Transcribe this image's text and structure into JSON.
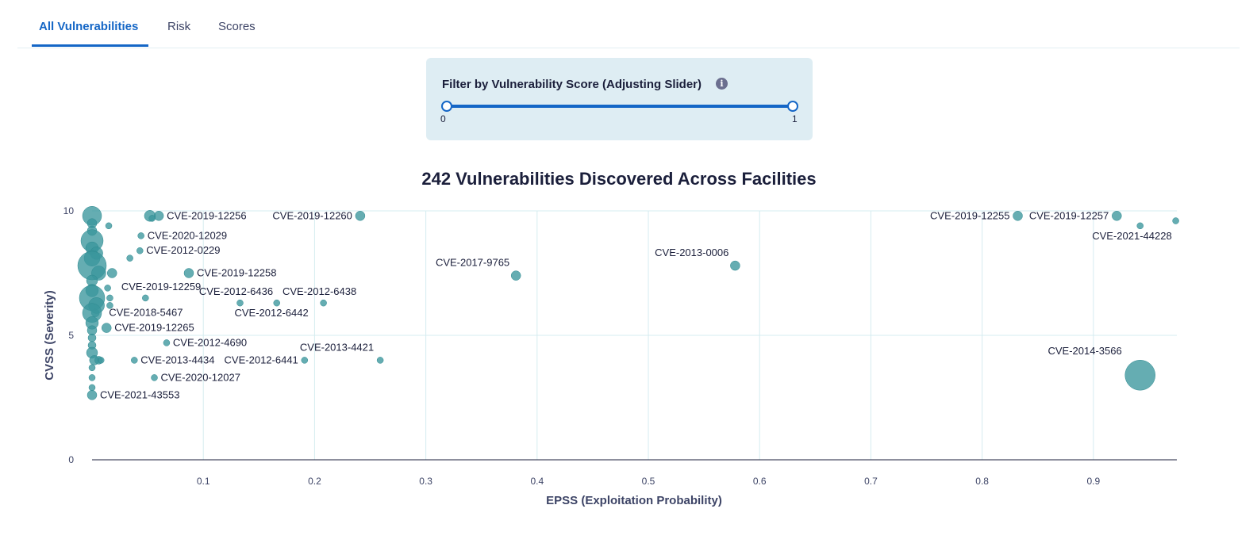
{
  "tabs": [
    {
      "label": "All Vulnerabilities",
      "active": true
    },
    {
      "label": "Risk",
      "active": false
    },
    {
      "label": "Scores",
      "active": false
    }
  ],
  "filter": {
    "title": "Filter by Vulnerability Score (Adjusting Slider)",
    "min_label": "0",
    "max_label": "1",
    "range": [
      0,
      1
    ],
    "accent_color": "#1466c6",
    "panel_color": "#deedf3"
  },
  "chart_data": {
    "type": "scatter",
    "title": "242 Vulnerabilities Discovered Across Facilities",
    "xlabel": "EPSS (Exploitation Probability)",
    "ylabel": "CVSS (Severity)",
    "xlim": [
      0,
      0.975
    ],
    "ylim": [
      0,
      10
    ],
    "xticks": [
      "0.1",
      "0.2",
      "0.3",
      "0.4",
      "0.5",
      "0.6",
      "0.7",
      "0.8",
      "0.9"
    ],
    "yticks": [
      "0",
      "5",
      "10"
    ],
    "grid": true,
    "marker_color": "#3a969c",
    "points": [
      {
        "label": "CVE-2019-12256",
        "x": 0.06,
        "y": 9.8,
        "size": 6
      },
      {
        "label": "CVE-2019-12260",
        "x": 0.241,
        "y": 9.8,
        "size": 6
      },
      {
        "label": "CVE-2019-12255",
        "x": 0.832,
        "y": 9.8,
        "size": 6
      },
      {
        "label": "CVE-2019-12257",
        "x": 0.921,
        "y": 9.8,
        "size": 6
      },
      {
        "label": "CVE-2021-44228",
        "x": 0.942,
        "y": 9.4,
        "size": 4
      },
      {
        "label": "CVE-2020-12029",
        "x": 0.044,
        "y": 9.0,
        "size": 4
      },
      {
        "label": "CVE-2012-0229",
        "x": 0.043,
        "y": 8.4,
        "size": 4
      },
      {
        "label": "CVE-2013-0006",
        "x": 0.578,
        "y": 7.8,
        "size": 6
      },
      {
        "label": "CVE-2019-12258",
        "x": 0.087,
        "y": 7.5,
        "size": 6
      },
      {
        "label": "CVE-2017-9765",
        "x": 0.381,
        "y": 7.4,
        "size": 6
      },
      {
        "label": "CVE-2019-12259",
        "x": 0.048,
        "y": 6.5,
        "size": 4
      },
      {
        "label": "CVE-2012-6436",
        "x": 0.133,
        "y": 6.3,
        "size": 4
      },
      {
        "label": "CVE-2012-6442",
        "x": 0.166,
        "y": 6.3,
        "size": 4
      },
      {
        "label": "CVE-2012-6438",
        "x": 0.208,
        "y": 6.3,
        "size": 4
      },
      {
        "label": "CVE-2018-5467",
        "x": 0.003,
        "y": 5.9,
        "size": 5
      },
      {
        "label": "CVE-2019-12265",
        "x": 0.013,
        "y": 5.3,
        "size": 6
      },
      {
        "label": "CVE-2012-4690",
        "x": 0.067,
        "y": 4.7,
        "size": 4
      },
      {
        "label": "CVE-2013-4421",
        "x": 0.259,
        "y": 4.0,
        "size": 4
      },
      {
        "label": "CVE-2013-4434",
        "x": 0.038,
        "y": 4.0,
        "size": 4
      },
      {
        "label": "CVE-2012-6441",
        "x": 0.191,
        "y": 4.0,
        "size": 4
      },
      {
        "label": "CVE-2020-12027",
        "x": 0.056,
        "y": 3.3,
        "size": 4
      },
      {
        "label": "CVE-2014-3566",
        "x": 0.942,
        "y": 3.4,
        "size": 19
      },
      {
        "label": "CVE-2021-43553",
        "x": 0.0,
        "y": 2.6,
        "size": 6
      },
      {
        "label": "",
        "x": 0.974,
        "y": 9.6,
        "size": 4
      },
      {
        "label": "",
        "x": 0.052,
        "y": 9.8,
        "size": 7
      },
      {
        "label": "",
        "x": 0.054,
        "y": 9.7,
        "size": 4
      },
      {
        "label": "",
        "x": 0.015,
        "y": 9.4,
        "size": 4
      },
      {
        "label": "",
        "x": 0.034,
        "y": 8.1,
        "size": 4
      },
      {
        "label": "",
        "x": 0.018,
        "y": 7.5,
        "size": 6
      },
      {
        "label": "",
        "x": 0.014,
        "y": 6.9,
        "size": 4
      },
      {
        "label": "",
        "x": 0.016,
        "y": 6.5,
        "size": 4
      },
      {
        "label": "",
        "x": 0.016,
        "y": 6.2,
        "size": 4
      },
      {
        "label": "",
        "x": 0.0,
        "y": 9.8,
        "size": 12
      },
      {
        "label": "",
        "x": 0.0,
        "y": 9.5,
        "size": 6
      },
      {
        "label": "",
        "x": 0.0,
        "y": 9.2,
        "size": 6
      },
      {
        "label": "",
        "x": 0.0,
        "y": 8.8,
        "size": 14
      },
      {
        "label": "",
        "x": 0.0,
        "y": 8.5,
        "size": 8
      },
      {
        "label": "",
        "x": 0.004,
        "y": 8.3,
        "size": 8
      },
      {
        "label": "",
        "x": 0.0,
        "y": 8.1,
        "size": 10
      },
      {
        "label": "",
        "x": 0.0,
        "y": 7.8,
        "size": 18
      },
      {
        "label": "",
        "x": 0.006,
        "y": 7.5,
        "size": 9
      },
      {
        "label": "",
        "x": 0.0,
        "y": 7.2,
        "size": 7
      },
      {
        "label": "",
        "x": 0.0,
        "y": 6.8,
        "size": 8
      },
      {
        "label": "",
        "x": 0.0,
        "y": 6.5,
        "size": 16
      },
      {
        "label": "",
        "x": 0.004,
        "y": 6.2,
        "size": 10
      },
      {
        "label": "",
        "x": 0.0,
        "y": 5.9,
        "size": 12
      },
      {
        "label": "",
        "x": 0.0,
        "y": 5.5,
        "size": 8
      },
      {
        "label": "",
        "x": 0.0,
        "y": 5.2,
        "size": 6
      },
      {
        "label": "",
        "x": 0.0,
        "y": 4.9,
        "size": 5
      },
      {
        "label": "",
        "x": 0.0,
        "y": 4.6,
        "size": 5
      },
      {
        "label": "",
        "x": 0.0,
        "y": 4.3,
        "size": 7
      },
      {
        "label": "",
        "x": 0.002,
        "y": 4.0,
        "size": 6
      },
      {
        "label": "",
        "x": 0.006,
        "y": 4.0,
        "size": 5
      },
      {
        "label": "",
        "x": 0.008,
        "y": 4.0,
        "size": 4
      },
      {
        "label": "",
        "x": 0.0,
        "y": 3.7,
        "size": 4
      },
      {
        "label": "",
        "x": 0.0,
        "y": 3.3,
        "size": 4
      },
      {
        "label": "",
        "x": 0.0,
        "y": 2.9,
        "size": 4
      }
    ]
  }
}
